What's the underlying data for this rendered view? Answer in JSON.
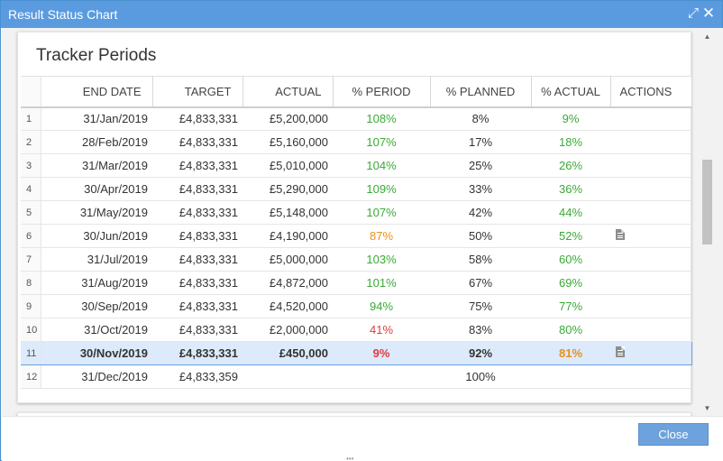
{
  "window": {
    "title": "Result Status Chart",
    "expand_icon": "expand-icon",
    "close_icon": "close-icon"
  },
  "panel": {
    "title": "Tracker Periods"
  },
  "table": {
    "headers": {
      "end_date": "END DATE",
      "target": "TARGET",
      "actual": "ACTUAL",
      "pct_period": "% PERIOD",
      "pct_planned": "% PLANNED",
      "pct_actual": "% ACTUAL",
      "actions": "ACTIONS"
    },
    "rows": [
      {
        "num": "1",
        "end_date": "31/Jan/2019",
        "target": "£4,833,331",
        "actual": "£5,200,000",
        "pct_period": "108%",
        "pct_planned": "8%",
        "pct_actual": "9%",
        "period_status": "green",
        "actual_status": "green",
        "has_doc": false,
        "selected": false
      },
      {
        "num": "2",
        "end_date": "28/Feb/2019",
        "target": "£4,833,331",
        "actual": "£5,160,000",
        "pct_period": "107%",
        "pct_planned": "17%",
        "pct_actual": "18%",
        "period_status": "green",
        "actual_status": "green",
        "has_doc": false,
        "selected": false
      },
      {
        "num": "3",
        "end_date": "31/Mar/2019",
        "target": "£4,833,331",
        "actual": "£5,010,000",
        "pct_period": "104%",
        "pct_planned": "25%",
        "pct_actual": "26%",
        "period_status": "green",
        "actual_status": "green",
        "has_doc": false,
        "selected": false
      },
      {
        "num": "4",
        "end_date": "30/Apr/2019",
        "target": "£4,833,331",
        "actual": "£5,290,000",
        "pct_period": "109%",
        "pct_planned": "33%",
        "pct_actual": "36%",
        "period_status": "green",
        "actual_status": "green",
        "has_doc": false,
        "selected": false
      },
      {
        "num": "5",
        "end_date": "31/May/2019",
        "target": "£4,833,331",
        "actual": "£5,148,000",
        "pct_period": "107%",
        "pct_planned": "42%",
        "pct_actual": "44%",
        "period_status": "green",
        "actual_status": "green",
        "has_doc": false,
        "selected": false
      },
      {
        "num": "6",
        "end_date": "30/Jun/2019",
        "target": "£4,833,331",
        "actual": "£4,190,000",
        "pct_period": "87%",
        "pct_planned": "50%",
        "pct_actual": "52%",
        "period_status": "orange",
        "actual_status": "green",
        "has_doc": true,
        "selected": false
      },
      {
        "num": "7",
        "end_date": "31/Jul/2019",
        "target": "£4,833,331",
        "actual": "£5,000,000",
        "pct_period": "103%",
        "pct_planned": "58%",
        "pct_actual": "60%",
        "period_status": "green",
        "actual_status": "green",
        "has_doc": false,
        "selected": false
      },
      {
        "num": "8",
        "end_date": "31/Aug/2019",
        "target": "£4,833,331",
        "actual": "£4,872,000",
        "pct_period": "101%",
        "pct_planned": "67%",
        "pct_actual": "69%",
        "period_status": "green",
        "actual_status": "green",
        "has_doc": false,
        "selected": false
      },
      {
        "num": "9",
        "end_date": "30/Sep/2019",
        "target": "£4,833,331",
        "actual": "£4,520,000",
        "pct_period": "94%",
        "pct_planned": "75%",
        "pct_actual": "77%",
        "period_status": "green",
        "actual_status": "green",
        "has_doc": false,
        "selected": false
      },
      {
        "num": "10",
        "end_date": "31/Oct/2019",
        "target": "£4,833,331",
        "actual": "£2,000,000",
        "pct_period": "41%",
        "pct_planned": "83%",
        "pct_actual": "80%",
        "period_status": "red",
        "actual_status": "green",
        "has_doc": false,
        "selected": false
      },
      {
        "num": "11",
        "end_date": "30/Nov/2019",
        "target": "£4,833,331",
        "actual": "£450,000",
        "pct_period": "9%",
        "pct_planned": "92%",
        "pct_actual": "81%",
        "period_status": "red",
        "actual_status": "orange",
        "has_doc": true,
        "selected": true
      },
      {
        "num": "12",
        "end_date": "31/Dec/2019",
        "target": "£4,833,359",
        "actual": "",
        "pct_period": "",
        "pct_planned": "100%",
        "pct_actual": "",
        "period_status": "",
        "actual_status": "",
        "has_doc": false,
        "selected": false
      }
    ]
  },
  "colors": {
    "titlebar": "#5a9be0",
    "green": "#3aaa35",
    "orange": "#e8901c",
    "red": "#e03c3c",
    "selected_row": "#dceafb",
    "close_button": "#6da2dc"
  },
  "footer": {
    "close_label": "Close"
  }
}
